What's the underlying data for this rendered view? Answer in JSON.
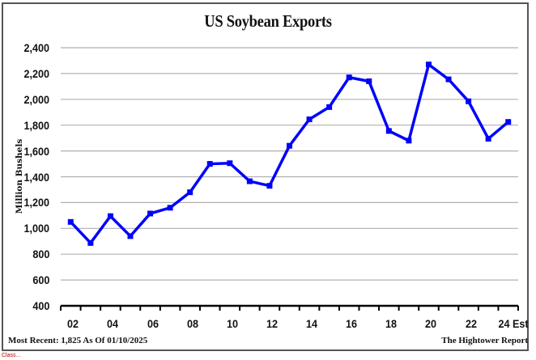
{
  "chart_data": {
    "type": "line",
    "title": "US Soybean Exports",
    "xlabel": "",
    "ylabel": "Million Bushels",
    "ylim": [
      400,
      2400
    ],
    "yticks": [
      400,
      600,
      800,
      1000,
      1200,
      1400,
      1600,
      1800,
      2000,
      2200,
      2400
    ],
    "ytick_labels": [
      "400",
      "600",
      "800",
      "1,000",
      "1,200",
      "1,400",
      "1,600",
      "1,800",
      "2,000",
      "2,200",
      "2,400"
    ],
    "grid": true,
    "categories": [
      "02",
      "03",
      "04",
      "05",
      "06",
      "07",
      "08",
      "09",
      "10",
      "11",
      "12",
      "13",
      "14",
      "15",
      "16",
      "17",
      "18",
      "19",
      "20",
      "21",
      "22",
      "23",
      "24 Est"
    ],
    "xtick_labels": [
      "02",
      "04",
      "06",
      "08",
      "10",
      "12",
      "14",
      "16",
      "18",
      "20",
      "22",
      "24 Est"
    ],
    "series": [
      {
        "name": "US Soybean Exports",
        "color": "#0000FF",
        "marker": "square",
        "values": [
          1050,
          887,
          1095,
          940,
          1115,
          1160,
          1280,
          1500,
          1505,
          1365,
          1330,
          1640,
          1845,
          1940,
          2170,
          2140,
          1755,
          1680,
          2270,
          2155,
          1985,
          1695,
          1825
        ]
      }
    ],
    "legend": null,
    "annotations": [
      "Most Recent: 1,825 As Of 01/10/2025",
      "The Hightower Report"
    ]
  },
  "header": {
    "title": "US Soybean Exports"
  },
  "axis": {
    "ylabel": "Million Bushels"
  },
  "footer": {
    "most_recent": "Most Recent: 1,825 As Of 01/10/2025",
    "source": "The Hightower Report"
  },
  "clipped_note": "Class..."
}
